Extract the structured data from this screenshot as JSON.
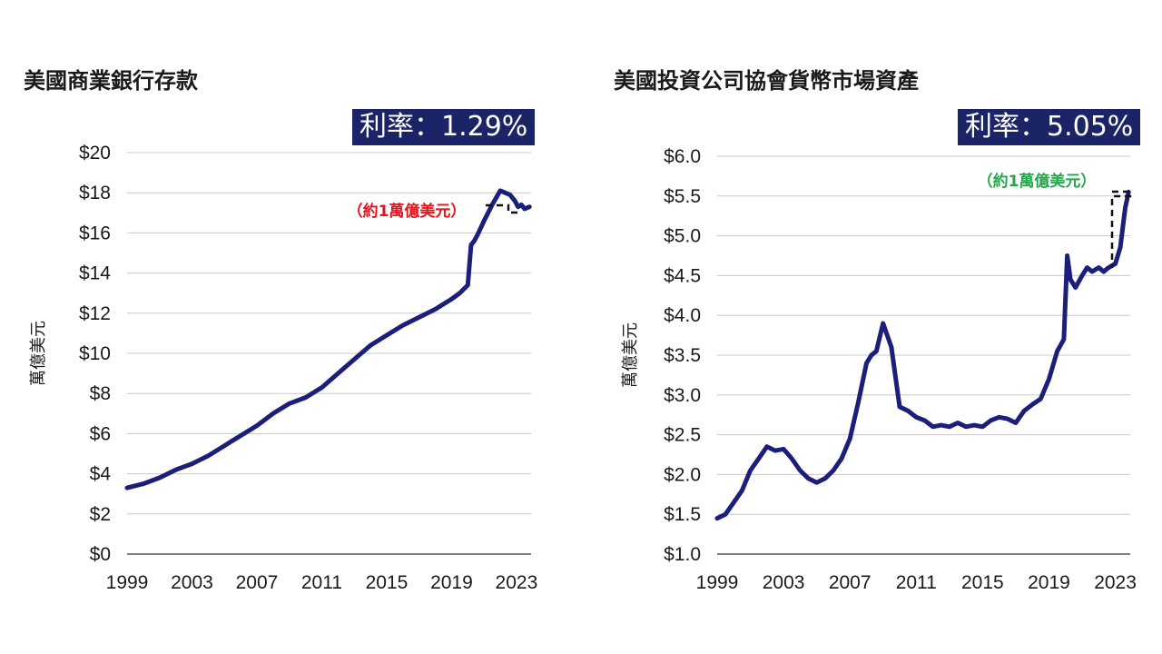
{
  "chart_data": [
    {
      "type": "line",
      "title": "美國商業銀行存款",
      "badge": "利率：1.29%",
      "ylabel": "萬億美元",
      "ylim": [
        0,
        20
      ],
      "xlim": [
        1999,
        2023.9
      ],
      "y_ticks": [
        "$0",
        "$2",
        "$4",
        "$6",
        "$8",
        "$10",
        "$12",
        "$14",
        "$16",
        "$18",
        "$20"
      ],
      "x_ticks": [
        "1999",
        "2003",
        "2007",
        "2011",
        "2015",
        "2019",
        "2023"
      ],
      "annotation": "（約1萬億美元）",
      "annotation_color": "#e3121b",
      "grid": true,
      "series": [
        {
          "color": "#1b1f7a",
          "x": [
            1999,
            2000,
            2001,
            2002,
            2003,
            2004,
            2005,
            2006,
            2007,
            2008,
            2009,
            2010,
            2011,
            2012,
            2013,
            2014,
            2015,
            2016,
            2017,
            2018,
            2019,
            2019.5,
            2020.0,
            2020.2,
            2020.4,
            2020.6,
            2021.0,
            2021.5,
            2022.0,
            2022.3,
            2022.6,
            2022.9,
            2023.1,
            2023.3,
            2023.5,
            2023.8
          ],
          "y": [
            3.3,
            3.5,
            3.8,
            4.2,
            4.5,
            4.9,
            5.4,
            5.9,
            6.4,
            7.0,
            7.5,
            7.8,
            8.3,
            9.0,
            9.7,
            10.4,
            10.9,
            11.4,
            11.8,
            12.2,
            12.7,
            13.0,
            13.4,
            15.4,
            15.6,
            15.9,
            16.6,
            17.4,
            18.1,
            18.0,
            17.9,
            17.6,
            17.3,
            17.4,
            17.2,
            17.3
          ]
        }
      ]
    },
    {
      "type": "line",
      "title": "美國投資公司協會貨幣市場資產",
      "badge": "利率：5.05%",
      "ylabel": "萬億美元",
      "ylim": [
        1.0,
        6.0
      ],
      "xlim": [
        1999,
        2023.9
      ],
      "y_ticks": [
        "$1.0",
        "$1.5",
        "$2.0",
        "$2.5",
        "$3.0",
        "$3.5",
        "$4.0",
        "$4.5",
        "$5.0",
        "$5.5",
        "$6.0"
      ],
      "x_ticks": [
        "1999",
        "2003",
        "2007",
        "2011",
        "2015",
        "2019",
        "2023"
      ],
      "annotation": "（約1萬億美元）",
      "annotation_color": "#22a84a",
      "grid": true,
      "series": [
        {
          "color": "#1b1f7a",
          "x": [
            1999,
            1999.5,
            2000,
            2000.5,
            2001,
            2001.5,
            2002,
            2002.5,
            2003,
            2003.5,
            2004,
            2004.5,
            2005,
            2005.5,
            2006,
            2006.5,
            2007,
            2007.5,
            2008,
            2008.3,
            2008.6,
            2009,
            2009.5,
            2010,
            2010.5,
            2011,
            2011.5,
            2012,
            2012.5,
            2013,
            2013.5,
            2014,
            2014.5,
            2015,
            2015.5,
            2016,
            2016.5,
            2017,
            2017.5,
            2018,
            2018.5,
            2019,
            2019.5,
            2019.9,
            2020.1,
            2020.3,
            2020.6,
            2021,
            2021.3,
            2021.6,
            2022,
            2022.3,
            2022.6,
            2023,
            2023.3,
            2023.6,
            2023.8
          ],
          "y": [
            1.45,
            1.5,
            1.65,
            1.8,
            2.05,
            2.2,
            2.35,
            2.3,
            2.32,
            2.2,
            2.05,
            1.95,
            1.9,
            1.95,
            2.05,
            2.2,
            2.45,
            2.9,
            3.4,
            3.5,
            3.55,
            3.9,
            3.6,
            2.85,
            2.8,
            2.72,
            2.68,
            2.6,
            2.62,
            2.6,
            2.65,
            2.6,
            2.62,
            2.6,
            2.68,
            2.72,
            2.7,
            2.65,
            2.8,
            2.88,
            2.95,
            3.2,
            3.55,
            3.7,
            4.75,
            4.45,
            4.35,
            4.5,
            4.6,
            4.55,
            4.6,
            4.55,
            4.6,
            4.65,
            4.85,
            5.35,
            5.55
          ]
        }
      ]
    }
  ]
}
